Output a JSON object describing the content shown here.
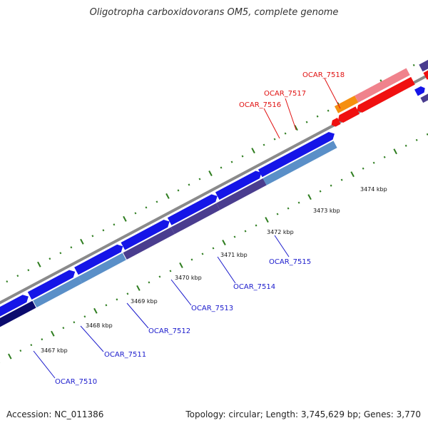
{
  "title": "Oligotropha carboxidovorans OM5, complete genome",
  "accession": "Accession: NC_011386",
  "topology_info": "Topology: circular; Length: 3,745,629 bp; Genes: 3,770",
  "colors": {
    "backbone": "#8a8a8a",
    "tick": "#2e7d1f",
    "gene_blue": "#1515e8",
    "gene_steel": "#5a8fc8",
    "gene_dark_navy": "#0b0b6e",
    "gene_purple": "#4a3d8f",
    "gene_red": "#f01010",
    "gene_pink": "#f0828c",
    "gene_orange": "#f59010",
    "label_blue": "#1a1acc",
    "label_red": "#e01010"
  },
  "diagram": {
    "tick_labels": [
      "3467 kbp",
      "3468 kbp",
      "3469 kbp",
      "3470 kbp",
      "3471 kbp",
      "3472 kbp",
      "3473 kbp",
      "3474 kbp"
    ],
    "gene_labels_blue": [
      "OCAR_7510",
      "OCAR_7511",
      "OCAR_7512",
      "OCAR_7513",
      "OCAR_7514",
      "OCAR_7515"
    ],
    "gene_labels_red": [
      "OCAR_7516",
      "OCAR_7517",
      "OCAR_7518"
    ]
  }
}
